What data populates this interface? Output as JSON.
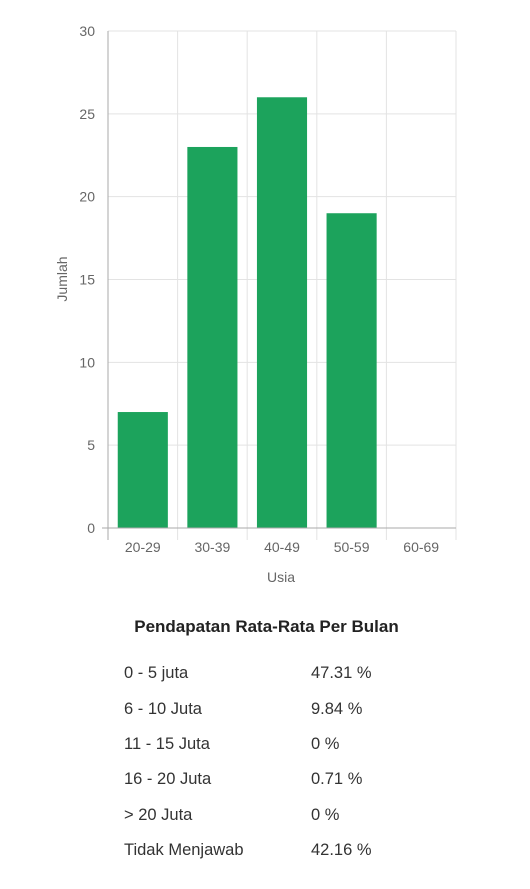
{
  "chart_data": {
    "type": "bar",
    "categories": [
      "20-29",
      "30-39",
      "40-49",
      "50-59",
      "60-69"
    ],
    "values": [
      7,
      23,
      26,
      19,
      0
    ],
    "xlabel": "Usia",
    "ylabel": "Jumlah",
    "ylim": [
      0,
      30
    ],
    "yticks": [
      0,
      5,
      10,
      15,
      20,
      25,
      30
    ],
    "grid": true,
    "bar_color": "#1ca35c"
  },
  "income": {
    "title": "Pendapatan Rata-Rata Per Bulan",
    "rows": [
      {
        "label": "0 - 5 juta",
        "value": "47.31 %"
      },
      {
        "label": "6 - 10 Juta",
        "value": "9.84 %"
      },
      {
        "label": "11 - 15 Juta",
        "value": "0 %"
      },
      {
        "label": "16 - 20 Juta",
        "value": "0.71 %"
      },
      {
        "label": "> 20 Juta",
        "value": "0 %"
      },
      {
        "label": "Tidak Menjawab",
        "value": "42.16 %"
      }
    ]
  }
}
